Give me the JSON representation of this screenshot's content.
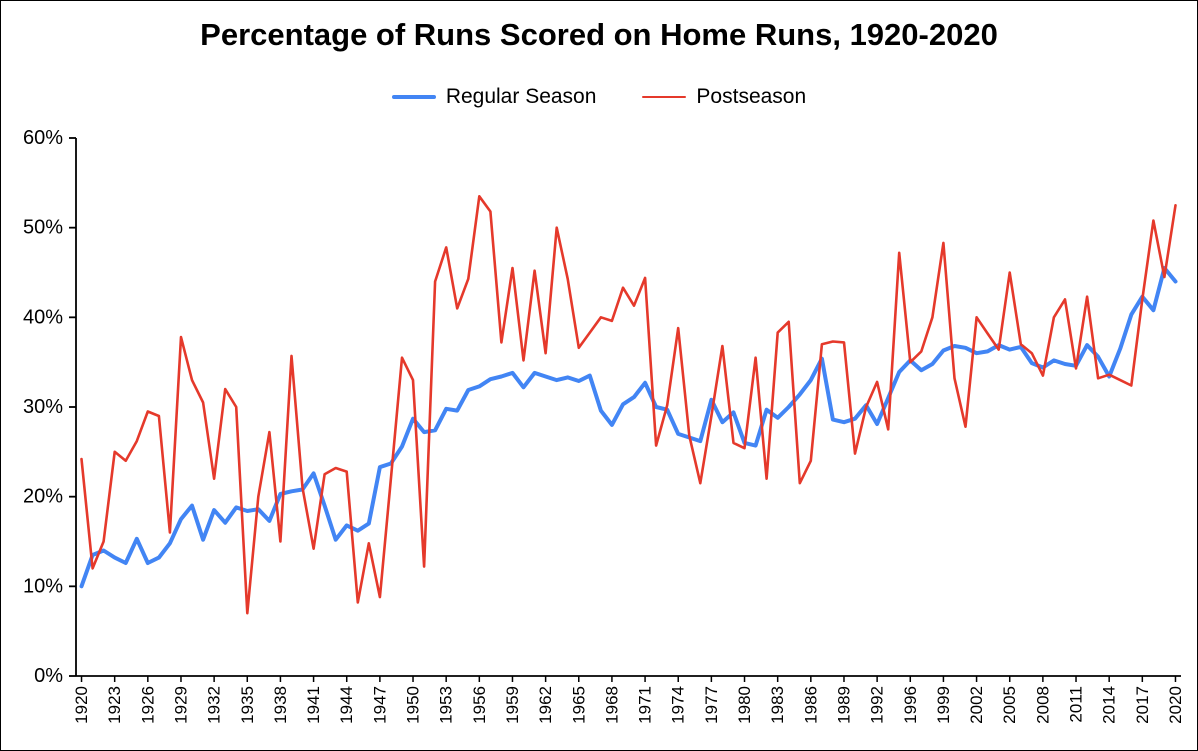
{
  "chart_data": {
    "type": "line",
    "title": "Percentage of Runs Scored on Home Runs, 1920-2020",
    "xlabel": "",
    "ylabel": "",
    "ylim": [
      0,
      60
    ],
    "yticks": [
      0,
      10,
      20,
      30,
      40,
      50,
      60
    ],
    "ytick_suffix": "%",
    "xtick_every": 3,
    "grid": false,
    "legend_position": "top",
    "axis_color": "#000000",
    "background_color": "#ffffff",
    "x_years": [
      1920,
      1921,
      1922,
      1923,
      1924,
      1925,
      1926,
      1927,
      1928,
      1929,
      1930,
      1931,
      1932,
      1933,
      1934,
      1935,
      1936,
      1937,
      1938,
      1939,
      1940,
      1941,
      1942,
      1943,
      1944,
      1945,
      1946,
      1947,
      1948,
      1949,
      1950,
      1951,
      1952,
      1953,
      1954,
      1955,
      1956,
      1957,
      1958,
      1959,
      1960,
      1961,
      1962,
      1963,
      1964,
      1965,
      1966,
      1967,
      1968,
      1969,
      1970,
      1971,
      1972,
      1973,
      1974,
      1975,
      1976,
      1977,
      1978,
      1979,
      1980,
      1981,
      1982,
      1983,
      1984,
      1985,
      1986,
      1987,
      1988,
      1989,
      1990,
      1991,
      1992,
      1993,
      1995,
      1996,
      1997,
      1998,
      1999,
      2000,
      2001,
      2002,
      2003,
      2004,
      2005,
      2006,
      2007,
      2008,
      2009,
      2010,
      2011,
      2012,
      2013,
      2014,
      2015,
      2016,
      2017,
      2018,
      2019,
      2020
    ],
    "series": [
      {
        "name": "Regular Season",
        "color": "#4285F4",
        "stroke_width": 4,
        "values": [
          10.0,
          13.5,
          14.0,
          13.2,
          12.6,
          15.3,
          12.6,
          13.2,
          14.8,
          17.5,
          19.0,
          15.2,
          18.5,
          17.1,
          18.8,
          18.4,
          18.6,
          17.3,
          20.3,
          20.6,
          20.8,
          22.6,
          19.0,
          15.2,
          16.8,
          16.2,
          17.0,
          23.3,
          23.7,
          25.6,
          28.7,
          27.2,
          27.4,
          29.8,
          29.6,
          31.9,
          32.3,
          33.1,
          33.4,
          33.8,
          32.2,
          33.8,
          33.4,
          33.0,
          33.3,
          32.9,
          33.5,
          29.6,
          28.0,
          30.3,
          31.1,
          32.7,
          30.0,
          29.7,
          27.0,
          26.6,
          26.2,
          30.8,
          28.3,
          29.4,
          26.0,
          25.7,
          29.7,
          28.8,
          30.0,
          31.4,
          33.0,
          35.4,
          28.6,
          28.3,
          28.7,
          30.2,
          28.1,
          31.0,
          33.9,
          35.2,
          34.1,
          34.8,
          36.3,
          36.8,
          36.6,
          36.0,
          36.2,
          36.9,
          36.4,
          36.7,
          34.9,
          34.4,
          35.2,
          34.8,
          34.6,
          36.9,
          35.6,
          33.4,
          36.5,
          40.3,
          42.3,
          40.8,
          45.5,
          44.0
        ]
      },
      {
        "name": "Postseason",
        "color": "#E5392B",
        "stroke_width": 2.6,
        "values": [
          24.2,
          12.0,
          15.0,
          25.0,
          24.0,
          26.2,
          29.5,
          29.0,
          16.0,
          37.8,
          33.0,
          30.5,
          22.0,
          32.0,
          30.0,
          7.0,
          20.0,
          27.2,
          15.0,
          35.7,
          21.0,
          14.2,
          22.5,
          23.2,
          22.8,
          8.2,
          14.8,
          8.8,
          22.0,
          35.5,
          33.0,
          12.2,
          44.0,
          47.8,
          41.0,
          44.3,
          53.5,
          51.8,
          37.2,
          45.5,
          35.2,
          45.2,
          36.0,
          50.0,
          44.3,
          36.6,
          38.3,
          40.0,
          39.6,
          43.3,
          41.3,
          44.4,
          25.7,
          30.2,
          38.8,
          26.8,
          21.5,
          29.0,
          36.8,
          26.0,
          25.4,
          35.5,
          22.0,
          38.3,
          39.5,
          21.5,
          24.0,
          37.0,
          37.3,
          37.2,
          24.8,
          30.0,
          32.8,
          27.5,
          47.2,
          35.0,
          36.2,
          40.0,
          48.3,
          33.2,
          27.8,
          40.0,
          38.2,
          36.4,
          45.0,
          37.0,
          36.0,
          33.5,
          40.0,
          42.0,
          34.3,
          42.3,
          33.2,
          33.6,
          33.0,
          32.4,
          42.0,
          50.8,
          44.5,
          52.5
        ]
      }
    ]
  }
}
